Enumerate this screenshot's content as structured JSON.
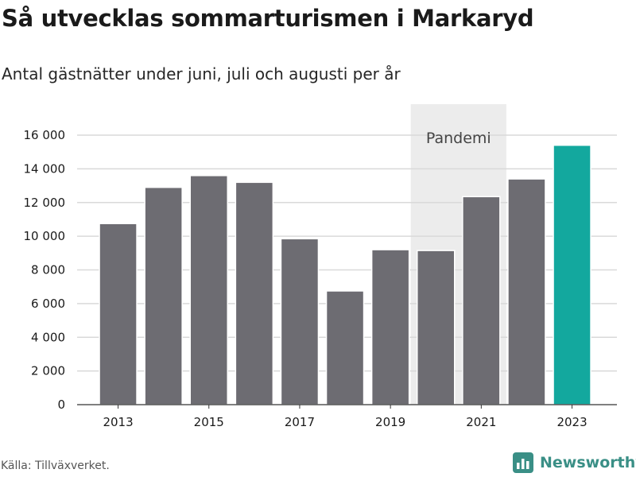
{
  "header": {
    "title": "Så utvecklas sommarturismen i Markaryd",
    "subtitle": "Antal gästnätter under juni, juli och augusti per år"
  },
  "footer": {
    "source": "Källa: Tillväxverket.",
    "brand": "Newsworthy",
    "brand_icon": "bar-chart-logo-icon"
  },
  "colors": {
    "bar": "#6d6c72",
    "highlight": "#13a89e",
    "shade": "#ececec",
    "grid": "#d9d9d9",
    "axis": "#333333",
    "brand": "#3a8f86"
  },
  "chart_data": {
    "type": "bar",
    "title": "Så utvecklas sommarturismen i Markaryd",
    "subtitle": "Antal gästnätter under juni, juli och augusti per år",
    "xlabel": "",
    "ylabel": "",
    "categories": [
      2013,
      2014,
      2015,
      2016,
      2017,
      2018,
      2019,
      2020,
      2021,
      2022,
      2023
    ],
    "values": [
      10750,
      12900,
      13600,
      13200,
      9850,
      6750,
      9200,
      9150,
      12350,
      13400,
      15400
    ],
    "highlight": [
      2023
    ],
    "ylim": [
      0,
      16000
    ],
    "y_ticks": [
      0,
      2000,
      4000,
      6000,
      8000,
      10000,
      12000,
      14000,
      16000
    ],
    "y_tick_labels": [
      "0",
      "2 000",
      "4 000",
      "6 000",
      "8 000",
      "10 000",
      "12 000",
      "14 000",
      "16 000"
    ],
    "x_tick_labels": [
      "2013",
      "2015",
      "2017",
      "2019",
      "2021",
      "2023"
    ],
    "shaded_region": {
      "from": 2020,
      "to": 2021,
      "label": "Pandemi"
    },
    "grid": "horizontal",
    "legend": "none"
  }
}
